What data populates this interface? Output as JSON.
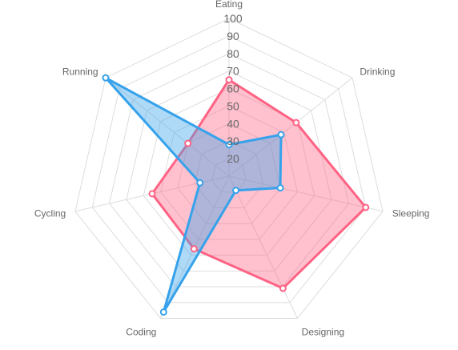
{
  "chart_data": {
    "type": "radar",
    "categories": [
      "Eating",
      "Drinking",
      "Sleeping",
      "Designing",
      "Coding",
      "Cycling",
      "Running"
    ],
    "r_ticks": [
      "20",
      "30",
      "40",
      "50",
      "60",
      "70",
      "80",
      "90",
      "100"
    ],
    "r_range": [
      10,
      100
    ],
    "grid": true,
    "legend": "none",
    "series": [
      {
        "values": [
          65,
          59,
          90,
          81,
          56,
          55,
          40
        ],
        "color": "#ff6384",
        "fill": "rgba(255, 99, 132, 0.4)"
      },
      {
        "values": [
          28,
          48,
          40,
          19,
          96,
          27,
          100
        ],
        "color": "#36a2eb",
        "fill": "rgba(54, 162, 235, 0.4)"
      }
    ]
  }
}
